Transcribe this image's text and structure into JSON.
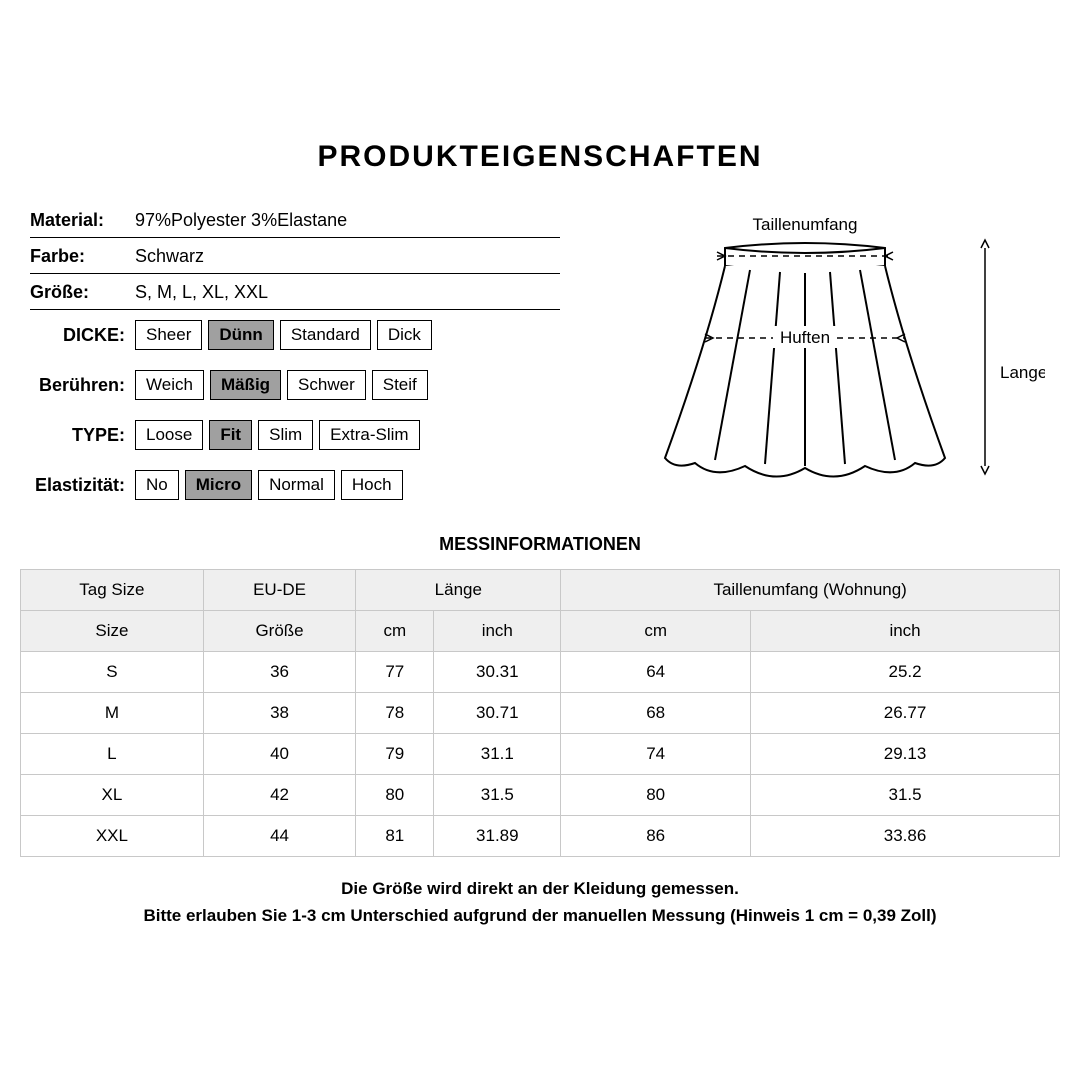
{
  "title": "PRODUKTEIGENSCHAFTEN",
  "props": {
    "material_label": "Material:",
    "material_value": "97%Polyester 3%Elastane",
    "color_label": "Farbe:",
    "color_value": "Schwarz",
    "size_label": "Größe:",
    "size_value": "S,  M,  L,  XL,  XXL",
    "thickness_label": "DICKE:",
    "thickness_options": [
      "Sheer",
      "Dünn",
      "Standard",
      "Dick"
    ],
    "thickness_selected": 1,
    "touch_label": "Berühren:",
    "touch_options": [
      "Weich",
      "Mäßig",
      "Schwer",
      "Steif"
    ],
    "touch_selected": 1,
    "type_label": "TYPE:",
    "type_options": [
      "Loose",
      "Fit",
      "Slim",
      "Extra-Slim"
    ],
    "type_selected": 1,
    "elastic_label": "Elastizität:",
    "elastic_options": [
      "No",
      "Micro",
      "Normal",
      "Hoch"
    ],
    "elastic_selected": 1
  },
  "diagram": {
    "waist_label": "Taillenumfang",
    "hip_label": "Huften",
    "length_label": "Lange",
    "line_color": "#000000"
  },
  "measurements": {
    "title": "MESSINFORMATIONEN",
    "header_row1": [
      "Tag Size",
      "EU-DE",
      "Länge",
      "Taillenumfang  (Wohnung)"
    ],
    "header_row2": [
      "Size",
      "Größe",
      "cm",
      "inch",
      "cm",
      "inch"
    ],
    "rows": [
      [
        "S",
        "36",
        "77",
        "30.31",
        "64",
        "25.2"
      ],
      [
        "M",
        "38",
        "78",
        "30.71",
        "68",
        "26.77"
      ],
      [
        "L",
        "40",
        "79",
        "31.1",
        "74",
        "29.13"
      ],
      [
        "XL",
        "42",
        "80",
        "31.5",
        "80",
        "31.5"
      ],
      [
        "XXL",
        "44",
        "81",
        "31.89",
        "86",
        "33.86"
      ]
    ],
    "header_bg": "#efefef",
    "border_color": "#c8c8c8"
  },
  "footer": {
    "line1": "Die Größe wird direkt an der Kleidung gemessen.",
    "line2": "Bitte erlauben Sie 1-3 cm Unterschied aufgrund der manuellen Messung (Hinweis 1 cm = 0,39 Zoll)"
  }
}
